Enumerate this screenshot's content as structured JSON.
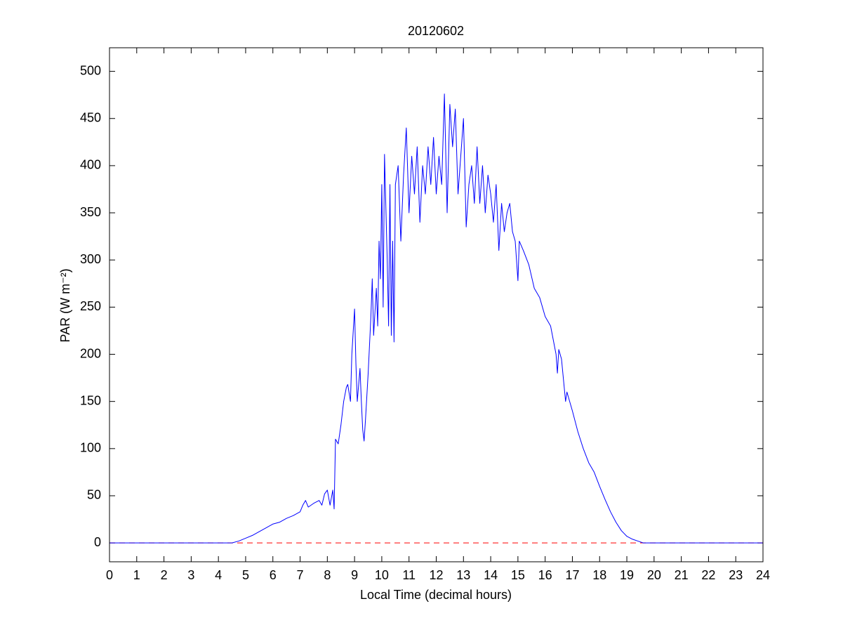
{
  "chart_data": {
    "type": "line",
    "title": "20120602",
    "xlabel": "Local Time (decimal hours)",
    "ylabel": "PAR (W m⁻²)",
    "x": [
      0,
      1,
      2,
      3,
      4,
      4.5,
      4.75,
      5,
      5.25,
      5.5,
      5.75,
      6,
      6.25,
      6.5,
      6.75,
      7,
      7.1,
      7.2,
      7.3,
      7.5,
      7.7,
      7.8,
      7.9,
      8,
      8.1,
      8.2,
      8.25,
      8.3,
      8.4,
      8.5,
      8.6,
      8.7,
      8.75,
      8.85,
      8.9,
      9,
      9.05,
      9.1,
      9.2,
      9.25,
      9.3,
      9.35,
      9.4,
      9.5,
      9.6,
      9.65,
      9.7,
      9.8,
      9.85,
      9.9,
      9.95,
      10,
      10.05,
      10.1,
      10.2,
      10.25,
      10.3,
      10.35,
      10.4,
      10.45,
      10.5,
      10.6,
      10.7,
      10.8,
      10.9,
      11,
      11.1,
      11.2,
      11.3,
      11.4,
      11.5,
      11.6,
      11.7,
      11.8,
      11.9,
      12,
      12.1,
      12.2,
      12.3,
      12.4,
      12.5,
      12.6,
      12.7,
      12.8,
      12.9,
      13,
      13.1,
      13.2,
      13.3,
      13.4,
      13.5,
      13.6,
      13.7,
      13.8,
      13.9,
      14,
      14.1,
      14.2,
      14.3,
      14.4,
      14.5,
      14.6,
      14.7,
      14.8,
      14.9,
      15,
      15.05,
      15.2,
      15.4,
      15.6,
      15.8,
      16,
      16.2,
      16.3,
      16.4,
      16.45,
      16.5,
      16.6,
      16.7,
      16.75,
      16.8,
      17,
      17.2,
      17.4,
      17.6,
      17.8,
      18,
      18.2,
      18.4,
      18.6,
      18.8,
      19,
      19.2,
      19.4,
      19.6,
      19.8,
      20,
      21,
      22,
      23,
      24
    ],
    "series": [
      {
        "color": "#0000ff",
        "values": [
          0,
          0,
          0,
          0,
          0,
          0,
          2,
          5,
          8,
          12,
          16,
          20,
          22,
          26,
          29,
          33,
          40,
          45,
          38,
          42,
          45,
          40,
          52,
          56,
          40,
          56,
          36,
          110,
          105,
          125,
          150,
          165,
          168,
          150,
          200,
          248,
          190,
          150,
          185,
          150,
          120,
          108,
          130,
          180,
          240,
          280,
          220,
          270,
          230,
          320,
          280,
          380,
          250,
          412,
          300,
          230,
          380,
          220,
          320,
          213,
          380,
          400,
          320,
          390,
          440,
          350,
          410,
          370,
          420,
          340,
          400,
          370,
          420,
          380,
          430,
          370,
          410,
          380,
          476,
          350,
          465,
          420,
          460,
          370,
          410,
          450,
          335,
          380,
          400,
          360,
          420,
          360,
          400,
          350,
          390,
          370,
          340,
          380,
          310,
          360,
          330,
          350,
          360,
          330,
          320,
          278,
          320,
          310,
          295,
          270,
          260,
          240,
          230,
          215,
          200,
          180,
          205,
          195,
          165,
          150,
          160,
          140,
          118,
          100,
          85,
          75,
          60,
          46,
          33,
          22,
          13,
          7,
          4,
          2,
          0,
          0,
          0,
          0,
          0,
          0,
          0
        ]
      }
    ],
    "reference_line": {
      "y": 0,
      "color": "#ff0000",
      "style": "dashed"
    },
    "xlim": [
      0,
      24
    ],
    "xticks": [
      0,
      1,
      2,
      3,
      4,
      5,
      6,
      7,
      8,
      9,
      10,
      11,
      12,
      13,
      14,
      15,
      16,
      17,
      18,
      19,
      20,
      21,
      22,
      23,
      24
    ],
    "ylim": [
      -20,
      525
    ],
    "yticks": [
      0,
      50,
      100,
      150,
      200,
      250,
      300,
      350,
      400,
      450,
      500
    ],
    "grid": false
  }
}
